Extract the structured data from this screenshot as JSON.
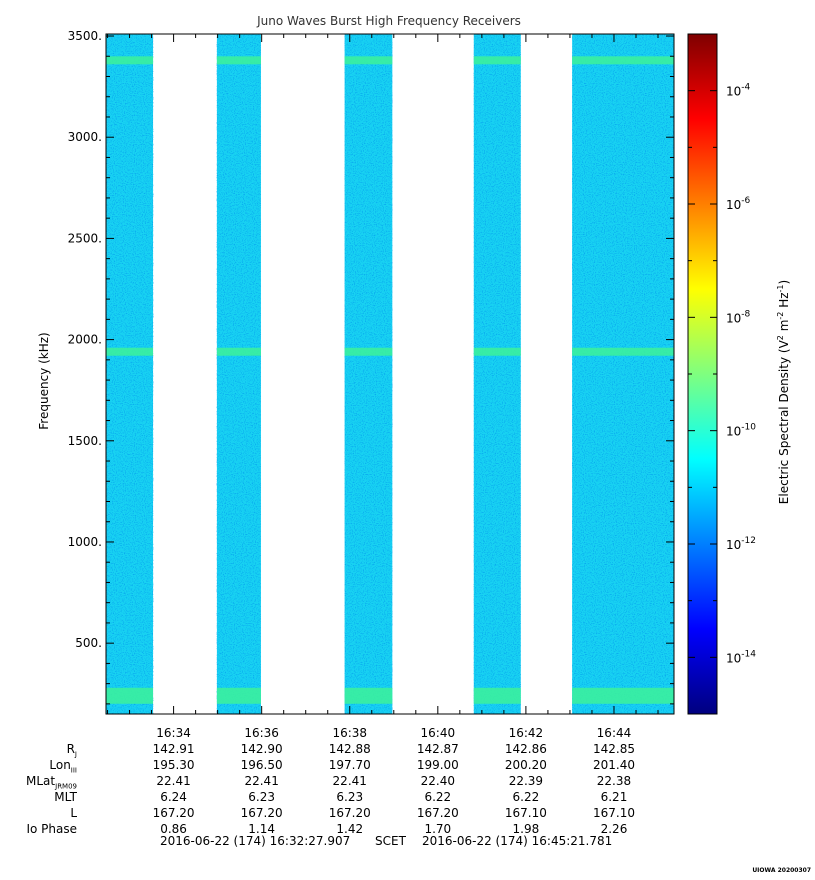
{
  "chart_data": {
    "type": "heatmap",
    "title": "Juno Waves Burst High Frequency Receivers",
    "ylabel": "Frequency (kHz)",
    "ylim": [
      150,
      3510
    ],
    "y_ticks": [
      "500.",
      "1000.",
      "1500.",
      "2000.",
      "2500.",
      "3000.",
      "3500."
    ],
    "y_tick_values": [
      500,
      1000,
      1500,
      2000,
      2500,
      3000,
      3500
    ],
    "x_ticks": [
      "16:34",
      "16:36",
      "16:38",
      "16:40",
      "16:42",
      "16:44"
    ],
    "x_tick_minutes": [
      34,
      36,
      38,
      40,
      42,
      44
    ],
    "x_start": "16:32:27.907",
    "x_end": "16:45:21.781",
    "data_blocks": [
      {
        "start": "16:32:27.9",
        "end": "16:33:32"
      },
      {
        "start": "16:34:59",
        "end": "16:35:59"
      },
      {
        "start": "16:37:53",
        "end": "16:38:58"
      },
      {
        "start": "16:40:49",
        "end": "16:41:53"
      },
      {
        "start": "16:43:03",
        "end": "16:45:21.8"
      }
    ],
    "emission_bands_khz": [
      240,
      1940,
      3380
    ],
    "background_level": "1e-12",
    "colorbar": {
      "label_main": "Electric Spectral Density (V",
      "label_sup1": "2",
      "label_mid": " m",
      "label_sup2": "-2",
      "label_mid2": " Hz",
      "label_sup3": "-1",
      "label_end": ")",
      "scale": "log",
      "range": [
        1e-15,
        0.001
      ],
      "tick_base": "10",
      "tick_exponents": [
        "-4",
        "-6",
        "-8",
        "-10",
        "-12",
        "-14"
      ],
      "colors": [
        "#00007f",
        "#0000ff",
        "#007fff",
        "#00ffff",
        "#7fff7f",
        "#ffff00",
        "#ff7f00",
        "#ff0000",
        "#7f0000"
      ]
    }
  },
  "ephemeris": {
    "rows": [
      {
        "label": "R",
        "label_sub": "J",
        "values": [
          "142.91",
          "142.90",
          "142.88",
          "142.87",
          "142.86",
          "142.85"
        ]
      },
      {
        "label": "Lon",
        "label_sub": "III",
        "values": [
          "195.30",
          "196.50",
          "197.70",
          "199.00",
          "200.20",
          "201.40"
        ]
      },
      {
        "label": "MLat",
        "label_sub": "JRM09",
        "values": [
          "22.41",
          "22.41",
          "22.41",
          "22.40",
          "22.39",
          "22.38"
        ]
      },
      {
        "label": "MLT",
        "label_sub": "",
        "values": [
          "6.24",
          "6.23",
          "6.23",
          "6.22",
          "6.22",
          "6.21"
        ]
      },
      {
        "label": "L",
        "label_sub": "",
        "values": [
          "167.20",
          "167.20",
          "167.20",
          "167.20",
          "167.10",
          "167.10"
        ]
      },
      {
        "label": "Io Phase",
        "label_sub": "",
        "values": [
          "0.86",
          "1.14",
          "1.42",
          "1.70",
          "1.98",
          "2.26"
        ]
      }
    ]
  },
  "time_range": {
    "start": "2016-06-22 (174) 16:32:27.907",
    "frame": "SCET",
    "end": "2016-06-22 (174) 16:45:21.781"
  },
  "footer_tag": "UIOWA 20200307"
}
